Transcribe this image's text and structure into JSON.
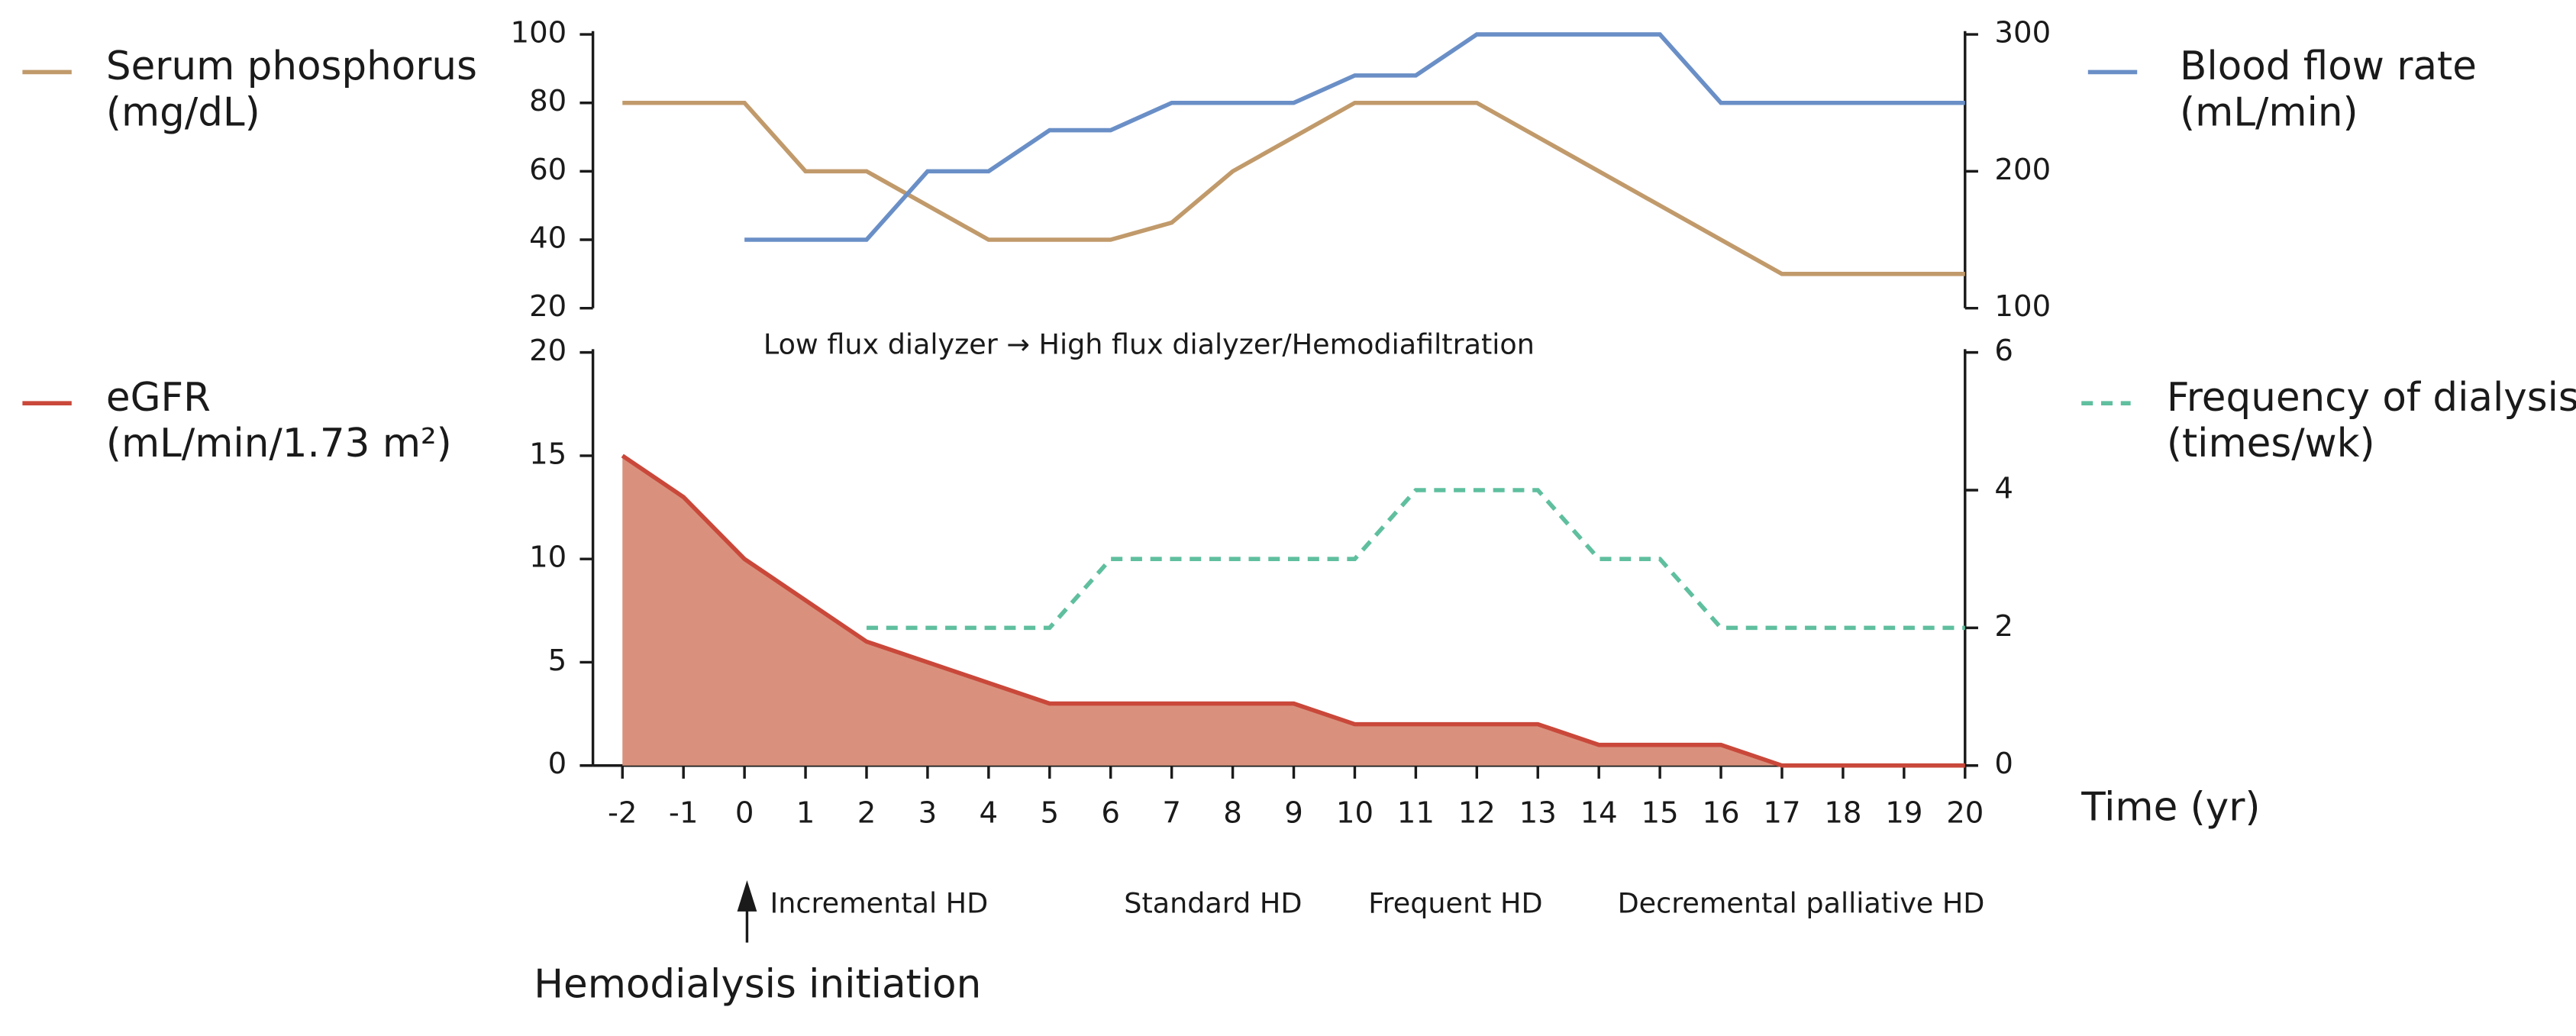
{
  "chart_data": [
    {
      "type": "line",
      "xlim": [
        -2,
        20
      ],
      "ylim": [
        20,
        100
      ],
      "yticks": [
        20,
        40,
        60,
        80,
        100
      ],
      "y2lim": [
        100,
        300
      ],
      "y2ticks": [
        100,
        200,
        300
      ],
      "series": [
        {
          "name": "Serum phosphorus",
          "unit": "(mg/dL)",
          "color": "#c19a6b",
          "axis": "y",
          "x": [
            -2,
            0,
            1,
            2,
            4,
            6,
            7,
            8,
            10,
            12,
            17,
            20
          ],
          "values": [
            80,
            80,
            60,
            60,
            40,
            40,
            45,
            60,
            80,
            80,
            30,
            30
          ]
        },
        {
          "name": "Blood flow rate",
          "unit": "(mL/min)",
          "color": "#6a8fc7",
          "axis": "y2",
          "x": [
            0,
            2,
            3,
            4,
            5,
            6,
            7,
            9,
            10,
            11,
            12,
            15,
            16,
            20
          ],
          "values": [
            150,
            150,
            200,
            200,
            230,
            230,
            250,
            250,
            270,
            270,
            300,
            300,
            250,
            250
          ]
        }
      ]
    },
    {
      "type": "line",
      "xlim": [
        -2,
        20
      ],
      "xticks": [
        -2,
        -1,
        0,
        1,
        2,
        3,
        4,
        5,
        6,
        7,
        8,
        9,
        10,
        11,
        12,
        13,
        14,
        15,
        16,
        17,
        18,
        19,
        20
      ],
      "xlabel": "Time (yr)",
      "ylim": [
        0,
        20
      ],
      "yticks": [
        0,
        5,
        10,
        15,
        20
      ],
      "y2lim": [
        0,
        6
      ],
      "y2ticks": [
        0,
        2,
        4,
        6
      ],
      "series": [
        {
          "name": "eGFR",
          "unit": "(mL/min/1.73 m²)",
          "color": "#c9483a",
          "fill_color": "#d9917d",
          "fill": true,
          "axis": "y",
          "x": [
            -2,
            -1,
            0,
            2,
            4,
            5,
            9,
            10,
            13,
            14,
            16,
            17,
            20
          ],
          "values": [
            15,
            13,
            10,
            6,
            4,
            3,
            3,
            2,
            2,
            1,
            1,
            0,
            0
          ]
        },
        {
          "name": "Frequency of dialysis",
          "unit": "(times/wk)",
          "color": "#5fbf9f",
          "dash": true,
          "axis": "y2",
          "x": [
            2,
            5,
            6,
            10,
            11,
            13,
            14,
            15,
            16,
            20
          ],
          "values": [
            2,
            2,
            3,
            3,
            4,
            4,
            3,
            3,
            2,
            2
          ]
        }
      ]
    }
  ],
  "annotations": [
    "Low flux dialyzer → High flux dialyzer/Hemodiafiltration",
    "Incremental HD",
    "Standard HD",
    "Frequent HD",
    "Decremental palliative HD",
    "Hemodialysis initiation"
  ]
}
